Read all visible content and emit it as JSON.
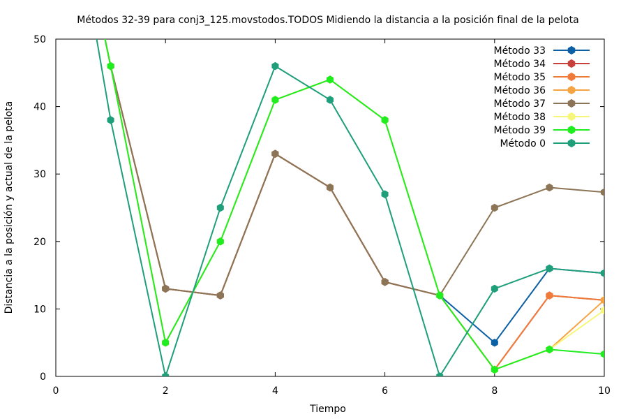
{
  "chart_data": {
    "type": "line",
    "title": "Métodos 32-39 para conj3_125.movstodos.TODOS Midiendo la distancia a la posición final de la pelota",
    "xlabel": "Tiempo",
    "ylabel": "Distancia a la posición y actual de la pelota",
    "xlim": [
      0,
      10
    ],
    "ylim": [
      0,
      50
    ],
    "xticks": [
      0,
      2,
      4,
      6,
      8,
      10
    ],
    "yticks": [
      0,
      10,
      20,
      30,
      40,
      50
    ],
    "grid": false,
    "legend_position": "top-right",
    "series": [
      {
        "name": "Método 33",
        "color": "#0b5fa5",
        "x": [
          0,
          1,
          2,
          3,
          4,
          5,
          6,
          7,
          8,
          9,
          10
        ],
        "y": [
          85,
          46,
          13,
          12,
          33,
          28,
          14,
          12,
          5,
          16,
          15.3
        ]
      },
      {
        "name": "Método 34",
        "color": "#c9403a",
        "x": [
          0,
          1,
          2,
          3,
          4,
          5,
          6,
          7,
          8,
          9,
          10
        ],
        "y": [
          85,
          46,
          13,
          12,
          33,
          28,
          14,
          12,
          1,
          12,
          11.3
        ]
      },
      {
        "name": "Método 35",
        "color": "#f07a3a",
        "x": [
          0,
          1,
          2,
          3,
          4,
          5,
          6,
          7,
          8,
          9,
          10
        ],
        "y": [
          85,
          46,
          13,
          12,
          33,
          28,
          14,
          12,
          1,
          12,
          11.3
        ]
      },
      {
        "name": "Método 36",
        "color": "#f5a443",
        "x": [
          0,
          1,
          2,
          3,
          4,
          5,
          6,
          7,
          8,
          9,
          10
        ],
        "y": [
          85,
          46,
          5,
          20,
          41,
          44,
          38,
          12,
          1,
          4,
          11.3
        ]
      },
      {
        "name": "Método 37",
        "color": "#8c7556",
        "x": [
          0,
          1,
          2,
          3,
          4,
          5,
          6,
          7,
          8,
          9,
          10
        ],
        "y": [
          85,
          46,
          13,
          12,
          33,
          28,
          14,
          12,
          25,
          28,
          27.3
        ]
      },
      {
        "name": "Método 38",
        "color": "#f6f77a",
        "x": [
          0,
          1,
          2,
          3,
          4,
          5,
          6,
          7,
          8,
          9,
          10
        ],
        "y": [
          85,
          46,
          5,
          20,
          41,
          44,
          38,
          12,
          1,
          4,
          9.8
        ]
      },
      {
        "name": "Método 39",
        "color": "#1fed1f",
        "x": [
          0,
          1,
          2,
          3,
          4,
          5,
          6,
          7,
          8,
          9,
          10
        ],
        "y": [
          85,
          46,
          5,
          20,
          41,
          44,
          38,
          12,
          1,
          4,
          3.3
        ]
      },
      {
        "name": "Método 0",
        "color": "#1f9e7a",
        "x": [
          0,
          1,
          2,
          3,
          4,
          5,
          6,
          7,
          8,
          9,
          10
        ],
        "y": [
          85,
          38,
          0,
          25,
          46,
          41,
          27,
          0,
          13,
          16,
          15.3
        ]
      }
    ]
  }
}
